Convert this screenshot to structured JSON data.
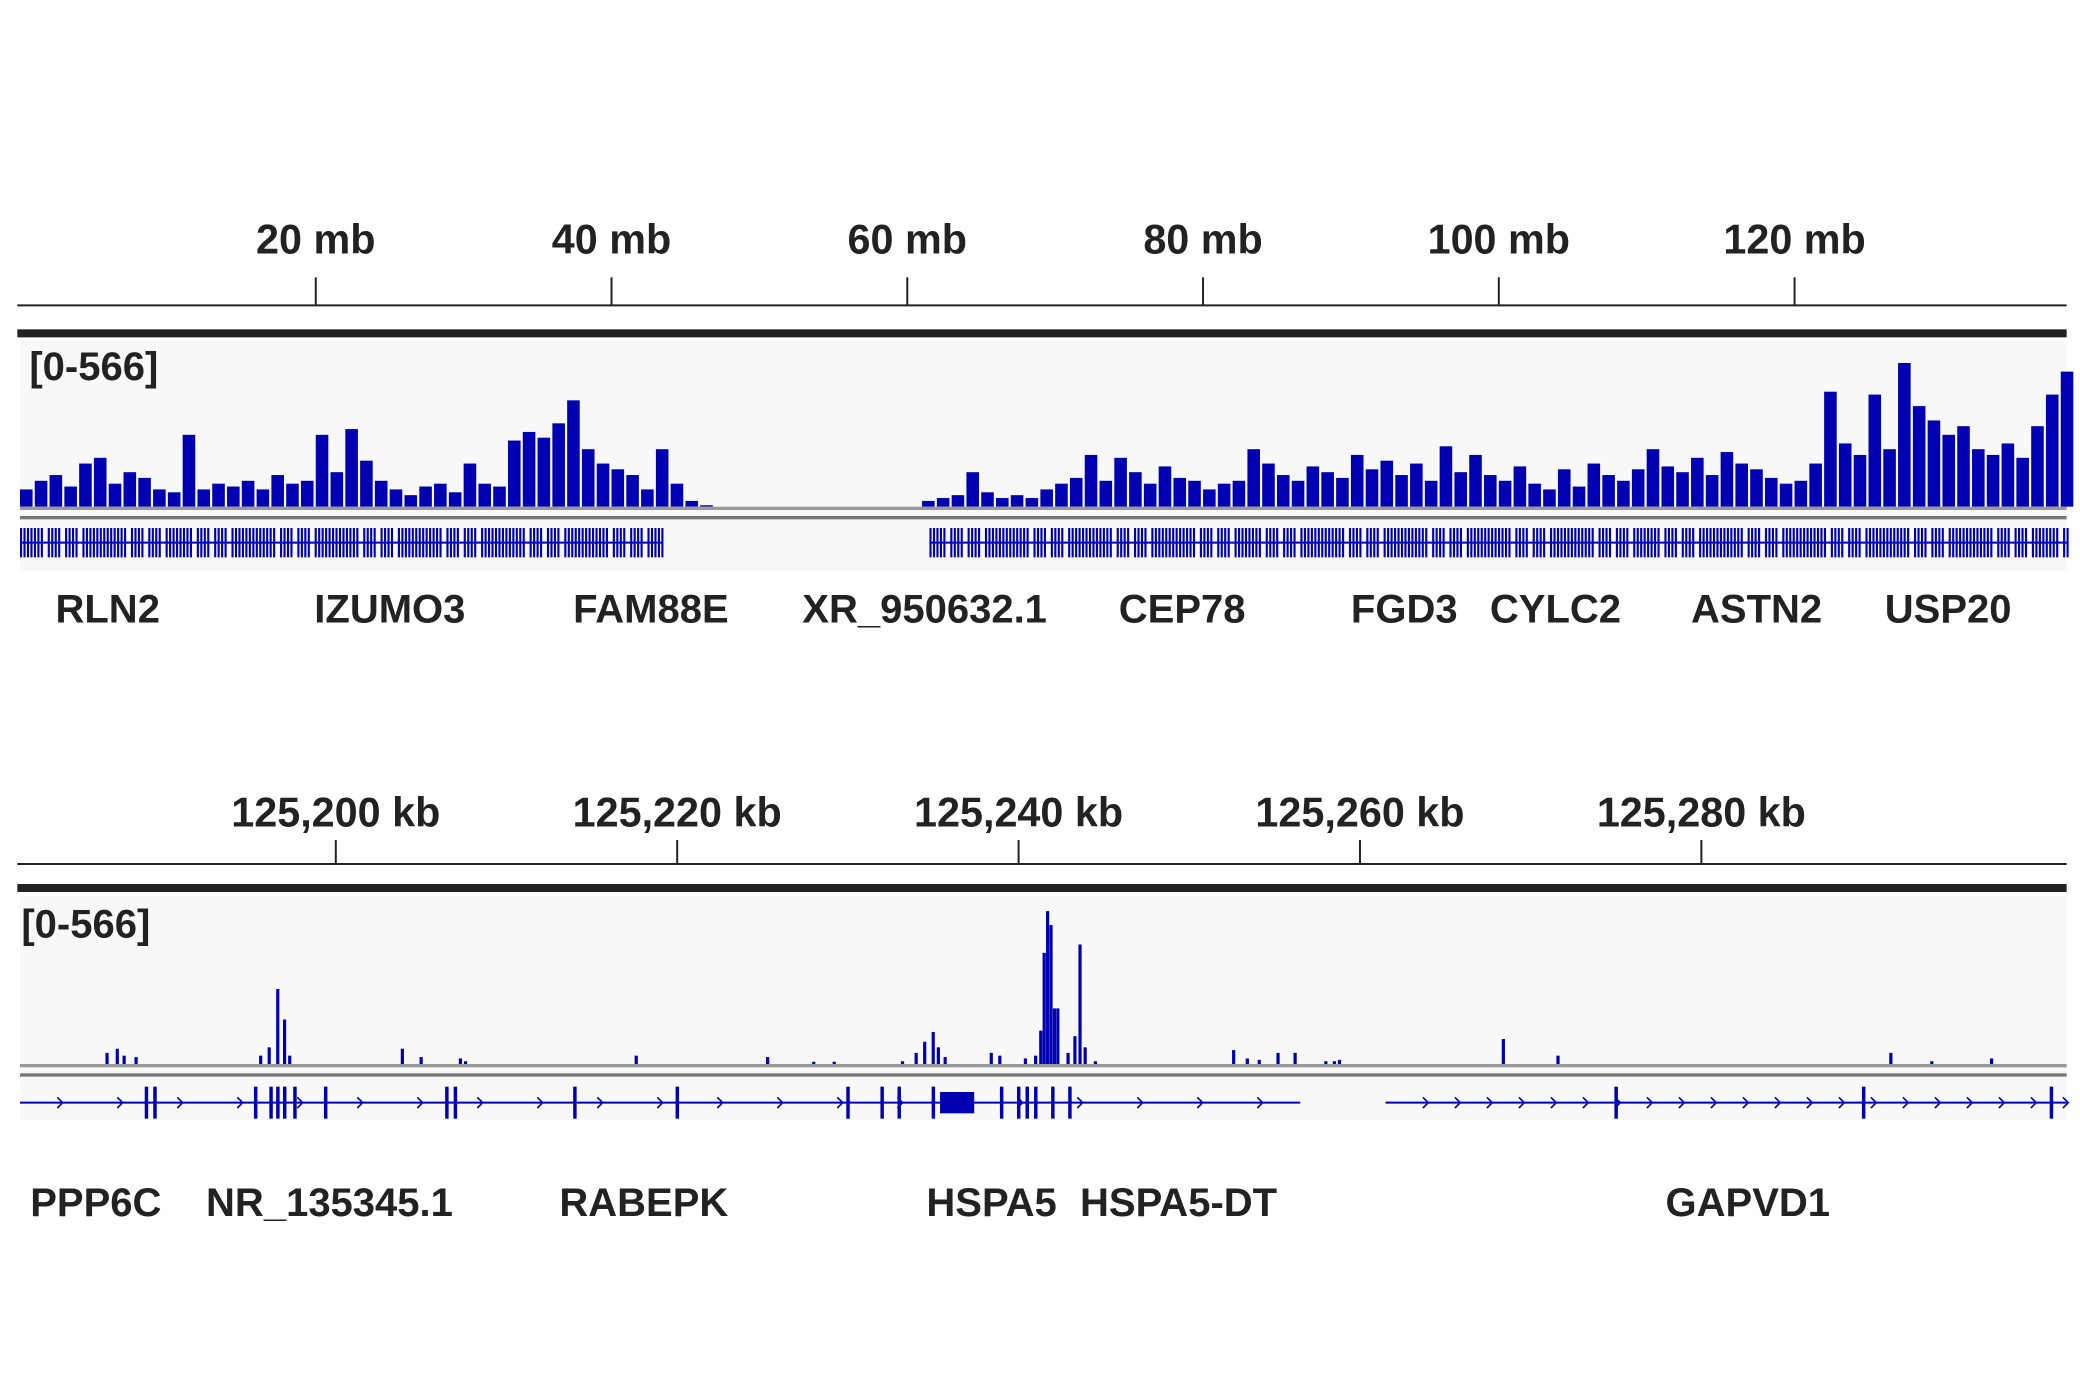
{
  "colors": {
    "signal": "#0000b3",
    "axis": "#222222",
    "track_bg": "#f8f8f8",
    "separator": "#777777"
  },
  "chart_data": [
    {
      "type": "bar",
      "view": "chromosome",
      "unit": "mb",
      "xlim": [
        0,
        138.4
      ],
      "ticks": [
        {
          "v": 20,
          "label": "20 mb"
        },
        {
          "v": 40,
          "label": "40 mb"
        },
        {
          "v": 60,
          "label": "60 mb"
        },
        {
          "v": 80,
          "label": "80 mb"
        },
        {
          "v": 100,
          "label": "100 mb"
        },
        {
          "v": 120,
          "label": "120 mb"
        }
      ],
      "range_label": "[0-566]",
      "ylim": [
        0,
        566
      ],
      "bin_size": 1,
      "values": [
        60,
        90,
        110,
        70,
        150,
        170,
        80,
        120,
        100,
        60,
        50,
        250,
        60,
        80,
        70,
        90,
        60,
        110,
        80,
        90,
        250,
        120,
        270,
        160,
        90,
        60,
        40,
        70,
        80,
        50,
        150,
        80,
        70,
        230,
        260,
        240,
        290,
        370,
        200,
        150,
        130,
        110,
        60,
        200,
        80,
        20,
        5,
        0,
        0,
        0,
        0,
        0,
        0,
        0,
        0,
        0,
        0,
        0,
        0,
        0,
        0,
        20,
        30,
        40,
        120,
        50,
        30,
        40,
        30,
        60,
        80,
        100,
        180,
        90,
        170,
        120,
        80,
        140,
        100,
        90,
        60,
        80,
        90,
        200,
        150,
        110,
        90,
        140,
        120,
        100,
        180,
        130,
        160,
        110,
        150,
        90,
        210,
        120,
        180,
        110,
        90,
        140,
        80,
        60,
        130,
        70,
        150,
        110,
        90,
        130,
        200,
        140,
        120,
        170,
        110,
        190,
        150,
        130,
        100,
        80,
        90,
        150,
        400,
        220,
        180,
        390,
        200,
        500,
        350,
        300,
        250,
        280,
        200,
        180,
        220,
        170,
        280,
        390,
        470
      ],
      "gene_regions": [
        [
          0,
          43.5
        ],
        [
          61.5,
          138.4
        ]
      ],
      "genes": [
        {
          "name": "RLN2",
          "pos": 2.4
        },
        {
          "name": "IZUMO3",
          "pos": 19.9
        },
        {
          "name": "FAM88E",
          "pos": 37.4
        },
        {
          "name": "XR_950632.1",
          "pos": 52.9
        },
        {
          "name": "CEP78",
          "pos": 74.3
        },
        {
          "name": "FGD3",
          "pos": 90.0
        },
        {
          "name": "CYLC2",
          "pos": 99.4
        },
        {
          "name": "ASTN2",
          "pos": 113.0
        },
        {
          "name": "USP20",
          "pos": 126.1
        }
      ]
    },
    {
      "type": "bar",
      "view": "region",
      "unit": "kb",
      "xlim": [
        125181.5,
        125301.4
      ],
      "ticks": [
        {
          "v": 125200,
          "label": "125,200 kb"
        },
        {
          "v": 125220,
          "label": "125,220 kb"
        },
        {
          "v": 125240,
          "label": "125,240 kb"
        },
        {
          "v": 125260,
          "label": "125,260 kb"
        },
        {
          "v": 125280,
          "label": "125,280 kb"
        }
      ],
      "range_label": "[0-566]",
      "ylim": [
        0,
        566
      ],
      "points": [
        [
          125186.6,
          40
        ],
        [
          125187.2,
          55
        ],
        [
          125187.6,
          30
        ],
        [
          125188.3,
          25
        ],
        [
          125195.6,
          30
        ],
        [
          125196.1,
          60
        ],
        [
          125196.6,
          270
        ],
        [
          125197.0,
          160
        ],
        [
          125197.3,
          30
        ],
        [
          125203.9,
          55
        ],
        [
          125205.0,
          25
        ],
        [
          125207.3,
          20
        ],
        [
          125207.6,
          10
        ],
        [
          125217.6,
          30
        ],
        [
          125225.3,
          25
        ],
        [
          125228.0,
          8
        ],
        [
          125229.2,
          8
        ],
        [
          125233.2,
          10
        ],
        [
          125234.0,
          40
        ],
        [
          125234.5,
          80
        ],
        [
          125235.0,
          115
        ],
        [
          125235.3,
          60
        ],
        [
          125235.7,
          25
        ],
        [
          125238.4,
          40
        ],
        [
          125238.9,
          30
        ],
        [
          125240.4,
          20
        ],
        [
          125241.0,
          30
        ],
        [
          125241.3,
          120
        ],
        [
          125241.5,
          400
        ],
        [
          125241.7,
          550
        ],
        [
          125241.9,
          500
        ],
        [
          125242.1,
          200
        ],
        [
          125242.3,
          200
        ],
        [
          125242.9,
          40
        ],
        [
          125243.3,
          100
        ],
        [
          125243.6,
          430
        ],
        [
          125243.9,
          60
        ],
        [
          125244.5,
          10
        ],
        [
          125252.6,
          50
        ],
        [
          125253.4,
          20
        ],
        [
          125254.1,
          15
        ],
        [
          125255.2,
          40
        ],
        [
          125256.2,
          40
        ],
        [
          125258.0,
          10
        ],
        [
          125258.5,
          10
        ],
        [
          125258.8,
          15
        ],
        [
          125268.4,
          90
        ],
        [
          125271.6,
          30
        ],
        [
          125291.1,
          40
        ],
        [
          125293.5,
          10
        ],
        [
          125297.0,
          20
        ]
      ],
      "gene_lines": [
        [
          125181.5,
          125256.5
        ],
        [
          125261.5,
          125301.4
        ]
      ],
      "exons": [
        125188.9,
        125189.4,
        125195.3,
        125196.2,
        125196.6,
        125197.0,
        125197.6,
        125199.4,
        125206.5,
        125207.0,
        125214.0,
        125220.0,
        125230.0,
        125232.0,
        125233.0,
        125235.0,
        125239.0,
        125240.0,
        125240.5,
        125241.0,
        125242.0,
        125243.0,
        125275.0,
        125289.5,
        125300.5
      ],
      "exon_block": [
        125235.4,
        125237.4
      ],
      "genes": [
        {
          "name": "PPP6C",
          "pos": 125182.1
        },
        {
          "name": "NR_135345.1",
          "pos": 125192.4
        },
        {
          "name": "RABEPK",
          "pos": 125213.1
        },
        {
          "name": "HSPA5",
          "pos": 125234.6
        },
        {
          "name": "HSPA5-DT",
          "pos": 125243.6
        },
        {
          "name": "GAPVD1",
          "pos": 125277.9
        }
      ]
    }
  ]
}
